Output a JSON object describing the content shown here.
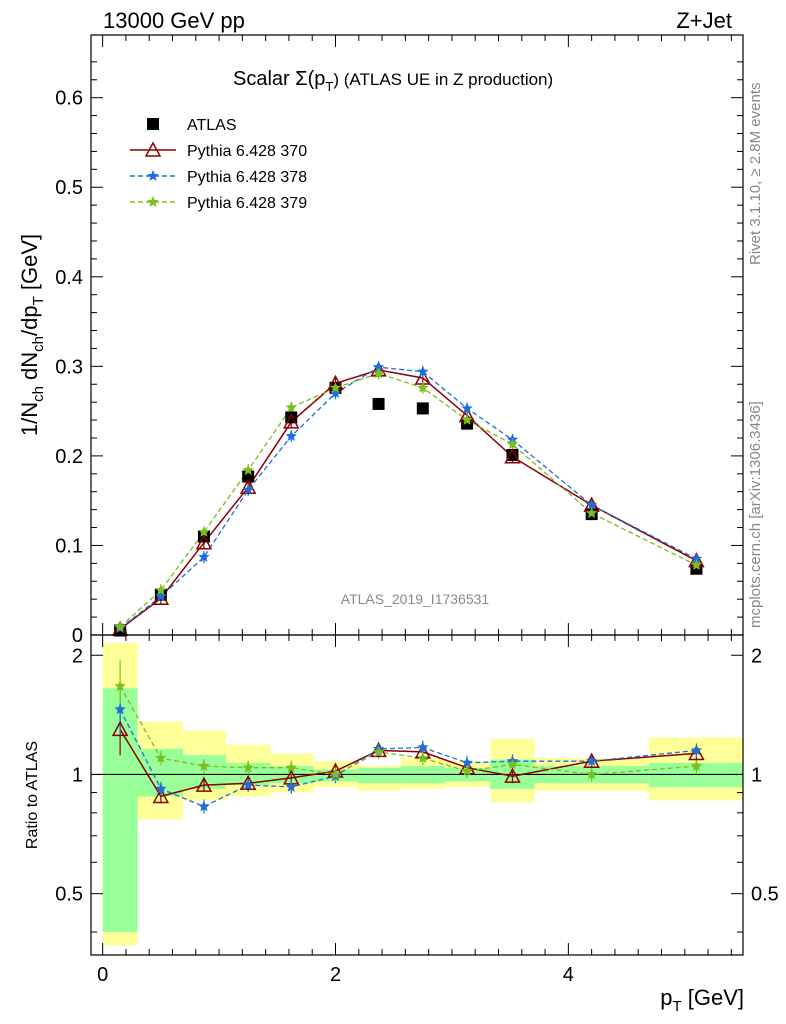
{
  "header": {
    "left": "13000 GeV pp",
    "right": "Z+Jet"
  },
  "side_labels": {
    "rivet": "Rivet 3.1.10, ≥ 2.8M events",
    "mcplots": "mcplots.cern.ch [arXiv:1306.3436]"
  },
  "watermark": "ATLAS_2019_I1736531",
  "chart_data": [
    {
      "type": "scatter",
      "title": "Scalar Σ(p_T) (ATLAS UE in Z production)",
      "title_parts": {
        "a": "Scalar Σ(p",
        "sub": "T",
        "b": ") (ATLAS UE in Z production)"
      },
      "ylabel": "1/N_ch dN_ch/dp_T [GeV]",
      "ylabel_parts": {
        "p1": "1/N",
        "s1": "ch",
        "p2": " dN",
        "s2": "ch",
        "p3": "/dp",
        "s3": "T",
        "p4": " [GeV]"
      },
      "xlim": [
        -0.1,
        5.5
      ],
      "ylim": [
        0,
        0.67
      ],
      "yticks": [
        0,
        0.1,
        0.2,
        0.3,
        0.4,
        0.5,
        0.6
      ],
      "ytick_labels": [
        "0",
        "0.1",
        "0.2",
        "0.3",
        "0.4",
        "0.5",
        "0.6"
      ],
      "legend_position": "top-left",
      "x": [
        0.15,
        0.5,
        0.87,
        1.25,
        1.62,
        2.0,
        2.37,
        2.75,
        3.13,
        3.52,
        4.2,
        5.1
      ],
      "series": [
        {
          "name": "ATLAS",
          "color": "#000000",
          "marker": "square",
          "line": "none",
          "values": [
            0.005,
            0.045,
            0.11,
            0.177,
            0.243,
            0.276,
            0.258,
            0.253,
            0.236,
            0.201,
            0.135,
            0.074
          ]
        },
        {
          "name": "Pythia 6.428 370",
          "color": "#8b0000",
          "marker": "triangle-open",
          "line": "solid",
          "values": [
            0.0065,
            0.041,
            0.103,
            0.165,
            0.238,
            0.281,
            0.296,
            0.287,
            0.245,
            0.199,
            0.145,
            0.083
          ]
        },
        {
          "name": "Pythia 6.428 378",
          "color": "#1e6fd9",
          "marker": "star",
          "line": "dashed",
          "values": [
            0.0075,
            0.043,
            0.087,
            0.162,
            0.222,
            0.27,
            0.299,
            0.294,
            0.253,
            0.218,
            0.145,
            0.085
          ]
        },
        {
          "name": "Pythia 6.428 379",
          "color": "#7bbf1e",
          "marker": "star",
          "line": "dashed",
          "values": [
            0.009,
            0.05,
            0.115,
            0.184,
            0.254,
            0.276,
            0.292,
            0.276,
            0.24,
            0.213,
            0.136,
            0.078
          ]
        }
      ]
    },
    {
      "type": "scatter",
      "xlabel": "p_T [GeV]",
      "xlabel_parts": {
        "a": "p",
        "sub": "T",
        "b": " [GeV]"
      },
      "ylabel": "Ratio to ATLAS",
      "xlim": [
        -0.1,
        5.5
      ],
      "ylim": [
        0.35,
        2.25
      ],
      "log_y": true,
      "xticks": [
        0,
        2,
        4
      ],
      "xtick_labels": [
        "0",
        "2",
        "4"
      ],
      "yticks": [
        0.5,
        1,
        2
      ],
      "ytick_labels": [
        "0.5",
        "1",
        "2"
      ],
      "bands": {
        "edges": [
          0,
          0.3,
          0.69,
          1.06,
          1.44,
          1.81,
          2.19,
          2.56,
          2.94,
          3.33,
          3.71,
          4.69,
          5.5
        ],
        "yellow": [
          [
            0.37,
            2.15
          ],
          [
            0.77,
            1.36
          ],
          [
            0.86,
            1.29
          ],
          [
            0.88,
            1.19
          ],
          [
            0.9,
            1.13
          ],
          [
            0.93,
            1.08
          ],
          [
            0.91,
            1.05
          ],
          [
            0.92,
            1.1
          ],
          [
            0.93,
            1.08
          ],
          [
            0.85,
            1.23
          ],
          [
            0.91,
            1.1
          ],
          [
            0.86,
            1.24
          ]
        ],
        "green": [
          [
            0.4,
            1.65
          ],
          [
            0.88,
            1.16
          ],
          [
            0.92,
            1.12
          ],
          [
            0.94,
            1.07
          ],
          [
            0.95,
            1.05
          ],
          [
            0.96,
            1.03
          ],
          [
            0.95,
            1.04
          ],
          [
            0.95,
            1.05
          ],
          [
            0.96,
            1.04
          ],
          [
            0.92,
            1.09
          ],
          [
            0.95,
            1.05
          ],
          [
            0.93,
            1.07
          ]
        ]
      },
      "series": [
        {
          "name": "Pythia 6.428 370",
          "color": "#8b0000",
          "values": [
            1.3,
            0.88,
            0.94,
            0.95,
            0.98,
            1.02,
            1.15,
            1.14,
            1.04,
            0.99,
            1.08,
            1.13
          ]
        },
        {
          "name": "Pythia 6.428 378",
          "color": "#1e6fd9",
          "values": [
            1.46,
            0.92,
            0.83,
            0.94,
            0.93,
            0.99,
            1.16,
            1.17,
            1.07,
            1.08,
            1.08,
            1.15
          ]
        },
        {
          "name": "Pythia 6.428 379",
          "color": "#7bbf1e",
          "values": [
            1.67,
            1.1,
            1.05,
            1.04,
            1.04,
            1.0,
            1.14,
            1.1,
            1.02,
            1.06,
            1.0,
            1.05
          ]
        }
      ]
    }
  ]
}
